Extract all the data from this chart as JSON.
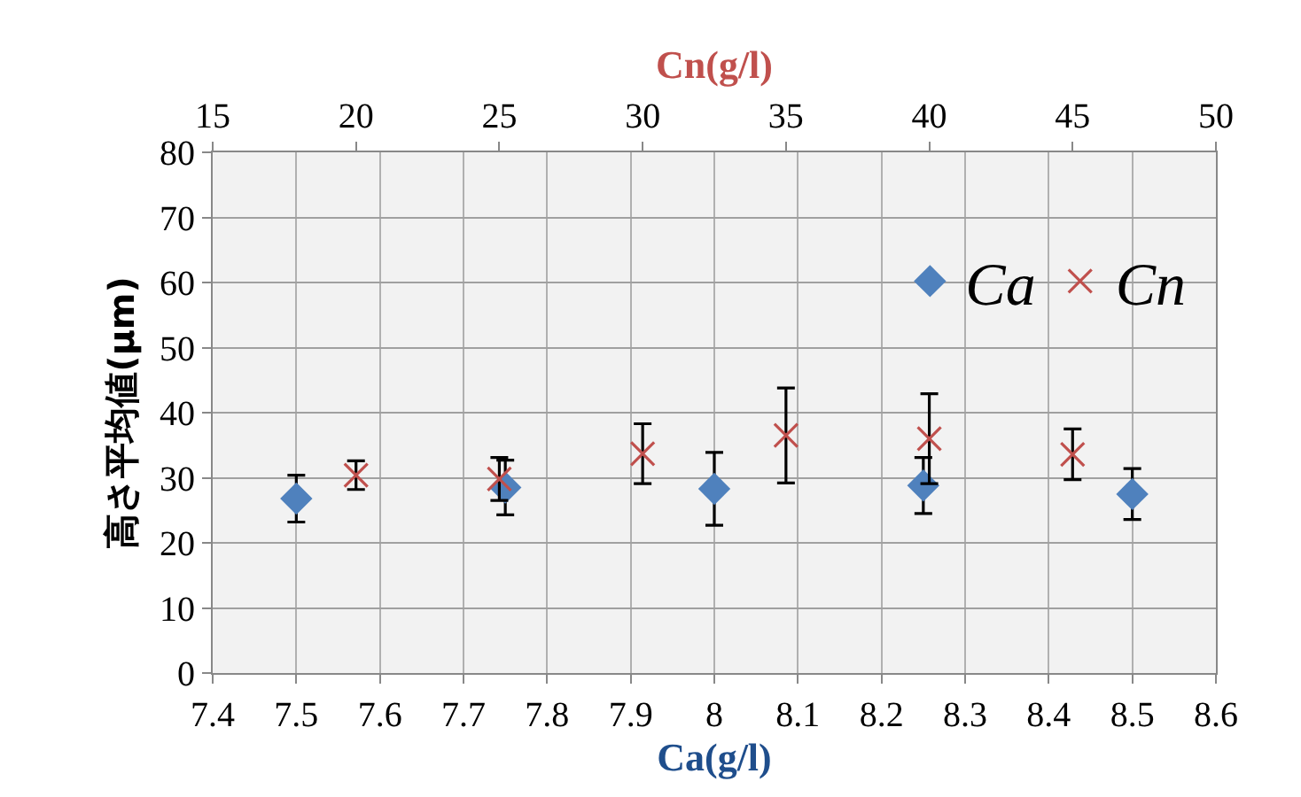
{
  "chart_data": {
    "type": "scatter",
    "xlabel": "Ca(g/l)",
    "x2label": "Cn(g/l)",
    "ylabel": "高さ平均値(μm)",
    "xlim": [
      7.4,
      8.6
    ],
    "xticks": [
      7.4,
      7.5,
      7.6,
      7.7,
      7.8,
      7.9,
      8,
      8.1,
      8.2,
      8.3,
      8.4,
      8.5,
      8.6
    ],
    "x2lim": [
      15,
      50
    ],
    "x2ticks": [
      15,
      20,
      25,
      30,
      35,
      40,
      45,
      50
    ],
    "ylim": [
      0,
      80
    ],
    "yticks": [
      0,
      10,
      20,
      30,
      40,
      50,
      60,
      70,
      80
    ],
    "grid": true,
    "legend": "top right",
    "series": [
      {
        "name": "Ca",
        "color": "#4f81bd",
        "marker": "diamond",
        "x": [
          7.5,
          7.75,
          8.0,
          8.25,
          8.5
        ],
        "values": [
          26.8,
          28.5,
          28.3,
          28.8,
          27.5
        ],
        "errors": [
          3.6,
          4.2,
          5.6,
          4.3,
          3.9
        ]
      },
      {
        "name": "Cn",
        "color": "#c0504d",
        "marker": "cross",
        "axis": "x2",
        "x": [
          20,
          25,
          30,
          35,
          40,
          45
        ],
        "values": [
          30.4,
          29.8,
          33.7,
          36.5,
          36.0,
          33.6
        ],
        "errors": [
          2.2,
          3.3,
          4.6,
          7.3,
          6.9,
          3.9
        ]
      }
    ]
  }
}
